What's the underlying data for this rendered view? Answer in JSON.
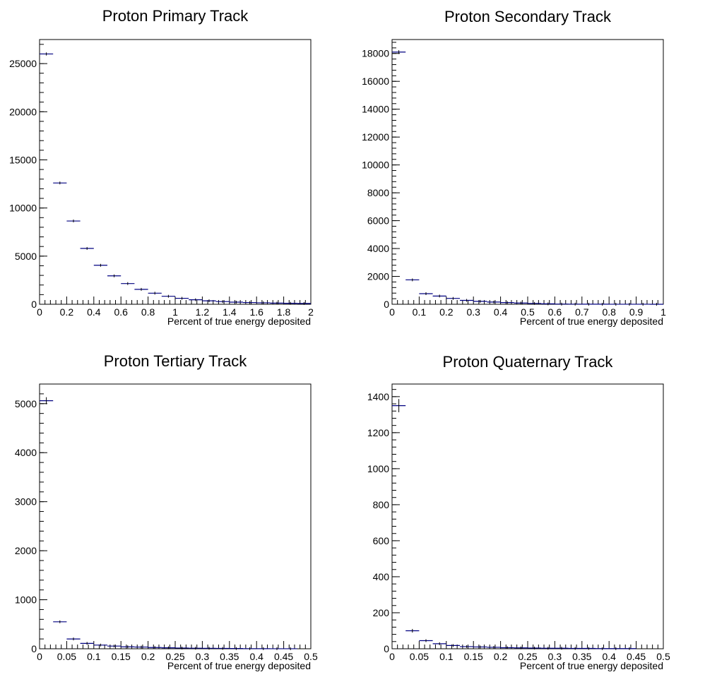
{
  "chart_data": [
    {
      "type": "histogram",
      "title": "Proton Primary Track",
      "xlabel": "Percent of true energy deposited",
      "ylabel": "",
      "xlim": [
        0,
        2
      ],
      "ylim": [
        0,
        27500
      ],
      "grid": false,
      "legend": "none",
      "xticks": [
        "0",
        "0.2",
        "0.4",
        "0.6",
        "0.8",
        "1",
        "1.2",
        "1.4",
        "1.6",
        "1.8",
        "2"
      ],
      "yticks": [
        "0",
        "5000",
        "10000",
        "15000",
        "20000",
        "25000"
      ],
      "bin_width": 0.1,
      "x": [
        0.05,
        0.15,
        0.25,
        0.35,
        0.45,
        0.55,
        0.65,
        0.75,
        0.85,
        0.95,
        1.05,
        1.15,
        1.25,
        1.35,
        1.45,
        1.55,
        1.65,
        1.75,
        1.85,
        1.95
      ],
      "values": [
        26000,
        12600,
        8650,
        5800,
        4050,
        2950,
        2150,
        1550,
        1150,
        830,
        620,
        470,
        360,
        280,
        220,
        180,
        150,
        120,
        100,
        80
      ]
    },
    {
      "type": "histogram",
      "title": "Proton Secondary Track",
      "xlabel": "Percent of true energy deposited",
      "ylabel": "",
      "xlim": [
        0,
        1
      ],
      "ylim": [
        0,
        19000
      ],
      "grid": false,
      "legend": "none",
      "xticks": [
        "0",
        "0.1",
        "0.2",
        "0.3",
        "0.4",
        "0.5",
        "0.6",
        "0.7",
        "0.8",
        "0.9",
        "1"
      ],
      "yticks": [
        "0",
        "2000",
        "4000",
        "6000",
        "8000",
        "10000",
        "12000",
        "14000",
        "16000",
        "18000"
      ],
      "bin_width": 0.05,
      "x": [
        0.025,
        0.075,
        0.125,
        0.175,
        0.225,
        0.275,
        0.325,
        0.375,
        0.425,
        0.475,
        0.525,
        0.575,
        0.625,
        0.675,
        0.725,
        0.775,
        0.825,
        0.875,
        0.925,
        0.975
      ],
      "values": [
        18100,
        1750,
        760,
        590,
        420,
        280,
        210,
        160,
        120,
        90,
        60,
        30,
        15,
        10,
        5,
        5,
        3,
        2,
        2,
        1
      ]
    },
    {
      "type": "histogram",
      "title": "Proton Tertiary Track",
      "xlabel": "Percent of true energy deposited",
      "ylabel": "",
      "xlim": [
        0,
        0.5
      ],
      "ylim": [
        0,
        5400
      ],
      "grid": false,
      "legend": "none",
      "xticks": [
        "0",
        "0.05",
        "0.1",
        "0.15",
        "0.2",
        "0.25",
        "0.3",
        "0.35",
        "0.4",
        "0.45",
        "0.5"
      ],
      "yticks": [
        "0",
        "1000",
        "2000",
        "3000",
        "4000",
        "5000"
      ],
      "bin_width": 0.025,
      "x": [
        0.0125,
        0.0375,
        0.0625,
        0.0875,
        0.1125,
        0.1375,
        0.1625,
        0.1875,
        0.2125,
        0.2375,
        0.2625,
        0.2875,
        0.3125,
        0.3375,
        0.3625,
        0.3875,
        0.4125,
        0.4375,
        0.4625,
        0.4875
      ],
      "values": [
        5060,
        550,
        200,
        110,
        75,
        55,
        40,
        35,
        25,
        20,
        15,
        12,
        10,
        8,
        5,
        3,
        2,
        1,
        1,
        0
      ]
    },
    {
      "type": "histogram",
      "title": "Proton Quaternary Track",
      "xlabel": "Percent of true energy deposited",
      "ylabel": "",
      "xlim": [
        0,
        0.5
      ],
      "ylim": [
        0,
        1470
      ],
      "grid": false,
      "legend": "none",
      "xticks": [
        "0",
        "0.05",
        "0.1",
        "0.15",
        "0.2",
        "0.25",
        "0.3",
        "0.35",
        "0.4",
        "0.45",
        "0.5"
      ],
      "yticks": [
        "0",
        "200",
        "400",
        "600",
        "800",
        "1000",
        "1200",
        "1400"
      ],
      "bin_width": 0.025,
      "x": [
        0.0125,
        0.0375,
        0.0625,
        0.0875,
        0.1125,
        0.1375,
        0.1625,
        0.1875,
        0.2125,
        0.2375,
        0.2625,
        0.2875,
        0.3125,
        0.3375,
        0.3625,
        0.3875,
        0.4125,
        0.4375,
        0.4625,
        0.4875
      ],
      "values": [
        1350,
        100,
        45,
        28,
        18,
        12,
        10,
        8,
        6,
        5,
        4,
        3,
        3,
        2,
        2,
        1,
        1,
        1,
        0,
        0
      ]
    }
  ],
  "colors": {
    "marker": "#000080",
    "axis": "#000000",
    "background": "#ffffff"
  }
}
